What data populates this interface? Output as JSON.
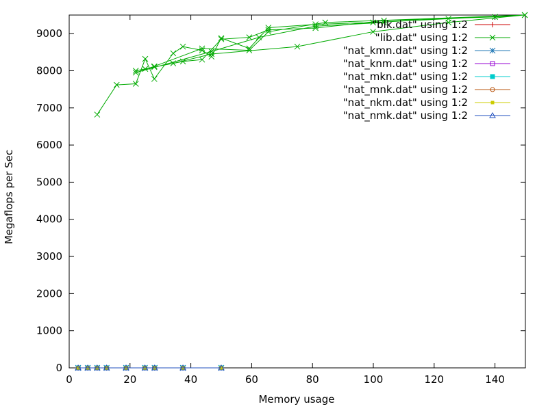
{
  "chart_data": {
    "type": "line",
    "title": "",
    "xlabel": "Memory usage",
    "ylabel": "Megaflops per Sec",
    "xlim": [
      0,
      150
    ],
    "ylim": [
      0,
      9500
    ],
    "xticks": [
      0,
      20,
      40,
      60,
      80,
      100,
      120,
      140
    ],
    "yticks": [
      0,
      1000,
      2000,
      3000,
      4000,
      5000,
      6000,
      7000,
      8000,
      9000
    ],
    "grid": false,
    "legend_position": "top-right",
    "series": [
      {
        "name": "\"blk.dat\" using 1:2",
        "color": "#cc0000",
        "marker": "plus",
        "x": [
          2.95,
          6.1,
          9.2,
          12.3,
          18.7,
          24.9,
          28.1,
          37.4,
          50.0
        ],
        "y": [
          0,
          0,
          0,
          0,
          0,
          0,
          0,
          0,
          0
        ]
      },
      {
        "name": "\"lib.dat\" using 1:2",
        "color": "#00aa00",
        "marker": "x",
        "x": [
          9.2,
          15.6,
          21.9,
          25.0,
          28.0,
          34.2,
          37.4,
          43.7,
          46.8,
          50.0,
          59.2,
          65.5,
          81.0,
          99.9,
          124.7,
          149.8,
          140.0,
          103.5,
          81.0,
          65.5,
          59.2,
          50.0,
          43.7,
          37.4,
          28.0,
          21.9,
          25.0,
          34.2,
          46.8,
          75.0,
          99.9,
          124.7,
          149.8,
          84.2,
          65.5,
          59.2,
          43.7,
          28.0,
          21.9,
          46.8,
          62.4,
          81.0,
          103.5
        ],
        "y": [
          6820,
          7620,
          7650,
          8320,
          7780,
          8470,
          8650,
          8550,
          8380,
          8880,
          8600,
          9160,
          9250,
          9300,
          9400,
          9500,
          9450,
          9350,
          9150,
          9100,
          8900,
          8850,
          8300,
          8250,
          8100,
          8000,
          8050,
          8200,
          8450,
          8650,
          9050,
          9300,
          9500,
          9300,
          9050,
          8550,
          8600,
          8120,
          7950,
          8520,
          8900,
          9200,
          9300
        ]
      },
      {
        "name": "\"nat_kmn.dat\" using 1:2",
        "color": "#1f77b4",
        "marker": "star",
        "x": [
          2.95,
          6.1,
          9.2,
          12.3,
          18.7,
          24.9,
          28.1,
          37.4,
          50.0
        ],
        "y": [
          0,
          0,
          0,
          0,
          0,
          0,
          0,
          0,
          0
        ]
      },
      {
        "name": "\"nat_knm.dat\" using 1:2",
        "color": "#9400d3",
        "marker": "box",
        "x": [
          2.95,
          6.1,
          9.2,
          12.3,
          18.7,
          24.9,
          28.1,
          37.4,
          50.0
        ],
        "y": [
          0,
          0,
          0,
          0,
          0,
          0,
          0,
          0,
          0
        ]
      },
      {
        "name": "\"nat_mkn.dat\" using 1:2",
        "color": "#00cccc",
        "marker": "filled-box",
        "x": [
          2.95,
          6.1,
          9.2,
          12.3,
          18.7,
          24.9,
          28.1,
          37.4,
          50.0
        ],
        "y": [
          0,
          0,
          0,
          0,
          0,
          0,
          0,
          0,
          0
        ]
      },
      {
        "name": "\"nat_mnk.dat\" using 1:2",
        "color": "#b8540c",
        "marker": "circle",
        "x": [
          2.95,
          6.1,
          9.2,
          12.3,
          18.7,
          24.9,
          28.1,
          37.4,
          50.0
        ],
        "y": [
          0,
          0,
          0,
          0,
          0,
          0,
          0,
          0,
          0
        ]
      },
      {
        "name": "\"nat_nkm.dat\" using 1:2",
        "color": "#cccc00",
        "marker": "filled-box-small",
        "x": [
          2.95,
          6.1,
          9.2,
          12.3,
          18.7,
          24.9,
          28.1,
          37.4,
          50.0
        ],
        "y": [
          0,
          0,
          0,
          0,
          0,
          0,
          0,
          0,
          0
        ]
      },
      {
        "name": "\"nat_nmk.dat\" using 1:2",
        "color": "#1f4fbf",
        "marker": "triangle",
        "x": [
          2.95,
          6.1,
          9.2,
          12.3,
          18.7,
          24.9,
          28.1,
          37.4,
          50.0
        ],
        "y": [
          0,
          0,
          0,
          0,
          0,
          0,
          0,
          0,
          0
        ]
      }
    ]
  }
}
